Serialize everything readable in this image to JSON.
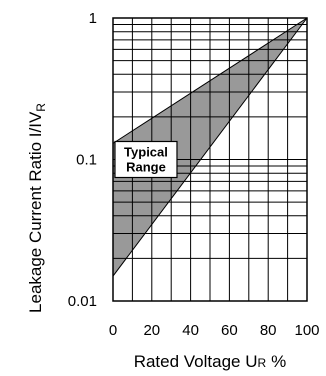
{
  "chart_data": {
    "type": "area",
    "title": "",
    "ylabel": "Leakage Current Ratio I/IV",
    "ylabel_subscript": "R",
    "xlabel": "Rated Voltage U",
    "xlabel_subscript": "R",
    "xlabel_unit": "%",
    "x_ticks": [
      0,
      20,
      40,
      60,
      80,
      100
    ],
    "y_ticks": [
      {
        "value": 0.01,
        "label": "0.01"
      },
      {
        "value": 0.1,
        "label": "0.1"
      },
      {
        "value": 1,
        "label": "1"
      }
    ],
    "xlim": [
      0,
      100
    ],
    "ylim": [
      0.01,
      1
    ],
    "y_scale": "log",
    "grid": true,
    "band": {
      "upper": [
        {
          "x": 0,
          "y": 0.13
        },
        {
          "x": 100,
          "y": 1
        }
      ],
      "lower": [
        {
          "x": 0,
          "y": 0.015
        },
        {
          "x": 100,
          "y": 1
        }
      ],
      "fill": "#999999"
    },
    "annotation": {
      "lines": [
        "Typical",
        "Range"
      ],
      "x": 17,
      "y": 0.1
    }
  }
}
